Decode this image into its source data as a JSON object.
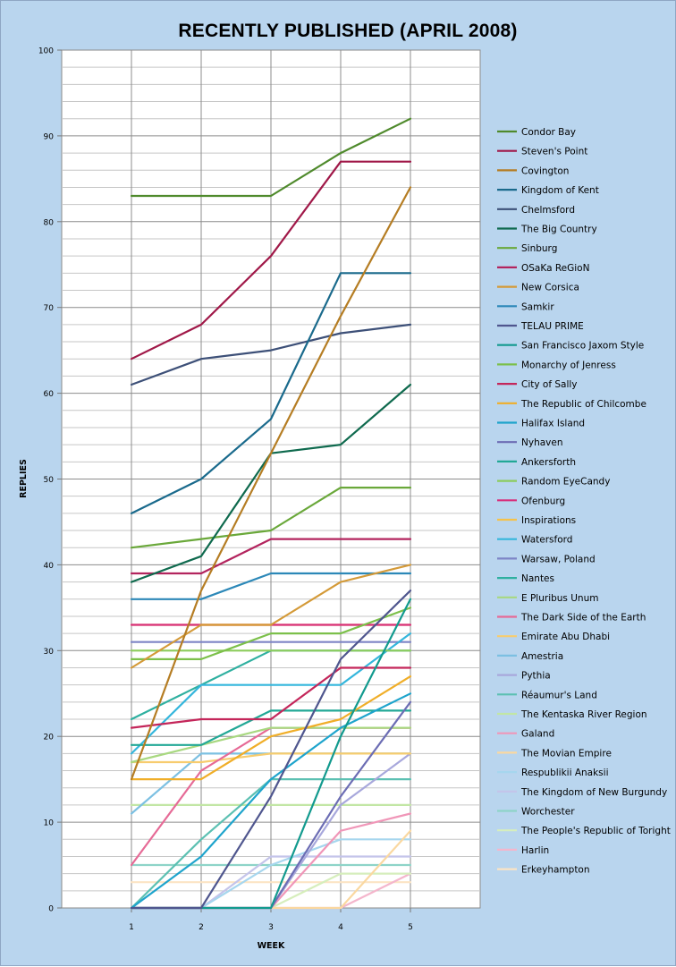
{
  "chart_data": {
    "type": "line",
    "title": "RECENTLY PUBLISHED (APRIL 2008)",
    "xlabel": "WEEK",
    "ylabel": "REPLIES",
    "x": [
      1,
      2,
      3,
      4,
      5
    ],
    "xlim": [
      0,
      6
    ],
    "ylim": [
      0,
      100
    ],
    "y_major_ticks": [
      0,
      10,
      20,
      30,
      40,
      50,
      60,
      70,
      80,
      90,
      100
    ],
    "y_minor_step": 2,
    "grid": true,
    "legend_position": "right",
    "series": [
      {
        "name": "Condor Bay",
        "color": "#4f8a2c",
        "values": [
          83,
          83,
          83,
          88,
          92
        ]
      },
      {
        "name": "Steven's Point",
        "color": "#a01848",
        "values": [
          64,
          68,
          76,
          87,
          87
        ]
      },
      {
        "name": "Covington",
        "color": "#b57d23",
        "values": [
          15,
          37,
          53,
          69,
          84
        ]
      },
      {
        "name": "Kingdom of Kent",
        "color": "#1a6a8c",
        "values": [
          46,
          50,
          57,
          74,
          74
        ]
      },
      {
        "name": "Chelmsford",
        "color": "#3d5078",
        "values": [
          61,
          64,
          65,
          67,
          68
        ]
      },
      {
        "name": "The Big Country",
        "color": "#0f6a4e",
        "values": [
          38,
          41,
          53,
          54,
          61
        ]
      },
      {
        "name": "Sinburg",
        "color": "#6aa83a",
        "values": [
          42,
          43,
          44,
          49,
          49
        ]
      },
      {
        "name": "OSaKa ReGioN",
        "color": "#b3245e",
        "values": [
          39,
          39,
          43,
          43,
          43
        ]
      },
      {
        "name": "New Corsica",
        "color": "#d49a38",
        "values": [
          28,
          33,
          33,
          38,
          40
        ]
      },
      {
        "name": "Samkir",
        "color": "#2c88b8",
        "values": [
          36,
          36,
          39,
          39,
          39
        ]
      },
      {
        "name": "TELAU PRIME",
        "color": "#4f568e",
        "values": [
          0,
          0,
          13,
          29,
          37
        ]
      },
      {
        "name": "San Francisco Jaxom Style",
        "color": "#129a8e",
        "values": [
          0,
          0,
          0,
          20,
          36
        ]
      },
      {
        "name": "Monarchy of Jenress",
        "color": "#7cc04a",
        "values": [
          29,
          29,
          32,
          32,
          35
        ]
      },
      {
        "name": "City of Sally",
        "color": "#c4265a",
        "values": [
          21,
          22,
          22,
          28,
          28
        ]
      },
      {
        "name": "The Republic of Chilcombe",
        "color": "#f0ae28",
        "values": [
          15,
          15,
          20,
          22,
          27
        ]
      },
      {
        "name": "Halifax Island",
        "color": "#1ea4cc",
        "values": [
          0,
          6,
          15,
          21,
          25
        ]
      },
      {
        "name": "Nyhaven",
        "color": "#6c6db4",
        "values": [
          0,
          0,
          0,
          13,
          24
        ]
      },
      {
        "name": "Ankersforth",
        "color": "#22a896",
        "values": [
          19,
          19,
          23,
          23,
          23
        ]
      },
      {
        "name": "Random EyeCandy",
        "color": "#8ccc5c",
        "values": [
          30,
          30,
          30,
          30,
          30
        ]
      },
      {
        "name": "Ofenburg",
        "color": "#d8307c",
        "values": [
          33,
          33,
          33,
          33,
          33
        ]
      },
      {
        "name": "Inspirations",
        "color": "#f5c24a",
        "values": [
          33,
          33,
          33,
          33,
          33
        ]
      },
      {
        "name": "Watersford",
        "color": "#34b6dc",
        "values": [
          18,
          26,
          26,
          26,
          32
        ]
      },
      {
        "name": "Warsaw, Poland",
        "color": "#7e85c6",
        "values": [
          31,
          31,
          31,
          31,
          31
        ]
      },
      {
        "name": "Nantes",
        "color": "#2fb0a0",
        "values": [
          22,
          26,
          30,
          30,
          30
        ]
      },
      {
        "name": "E Pluribus Unum",
        "color": "#a8d880",
        "values": [
          17,
          19,
          21,
          21,
          21
        ]
      },
      {
        "name": "The Dark Side of the Earth",
        "color": "#e66a96",
        "values": [
          5,
          16,
          21,
          21,
          21
        ]
      },
      {
        "name": "Emirate Abu Dhabi",
        "color": "#f7cc6e",
        "values": [
          17,
          17,
          18,
          18,
          18
        ]
      },
      {
        "name": "Amestria",
        "color": "#7cc0e2",
        "values": [
          11,
          18,
          18,
          18,
          18
        ]
      },
      {
        "name": "Pythia",
        "color": "#a8a8dc",
        "values": [
          0,
          0,
          0,
          12,
          18
        ]
      },
      {
        "name": "Réaumur's Land",
        "color": "#5cc0b2",
        "values": [
          0,
          8,
          15,
          15,
          15
        ]
      },
      {
        "name": "The Kentaska River Region",
        "color": "#c2e6a4",
        "values": [
          12,
          12,
          12,
          12,
          12
        ]
      },
      {
        "name": "Galand",
        "color": "#f096b8",
        "values": [
          0,
          0,
          0,
          9,
          11
        ]
      },
      {
        "name": "The Movian Empire",
        "color": "#fad8a0",
        "values": [
          0,
          0,
          0,
          0,
          9
        ]
      },
      {
        "name": "Respublikii Anaksii",
        "color": "#a6d6ee",
        "values": [
          0,
          0,
          5,
          8,
          8
        ]
      },
      {
        "name": "The Kingdom of New Burgundy",
        "color": "#c4c4ea",
        "values": [
          0,
          0,
          6,
          6,
          6
        ]
      },
      {
        "name": "Worchester",
        "color": "#8ed4c8",
        "values": [
          5,
          5,
          5,
          5,
          5
        ]
      },
      {
        "name": "The People's Republic of Toright",
        "color": "#d6eebc",
        "values": [
          0,
          0,
          0,
          4,
          4
        ]
      },
      {
        "name": "Harlin",
        "color": "#f4b6cc",
        "values": [
          0,
          0,
          0,
          0,
          4
        ]
      },
      {
        "name": "Erkeyhampton",
        "color": "#fce4c4",
        "values": [
          3,
          3,
          3,
          3,
          3
        ]
      }
    ]
  }
}
